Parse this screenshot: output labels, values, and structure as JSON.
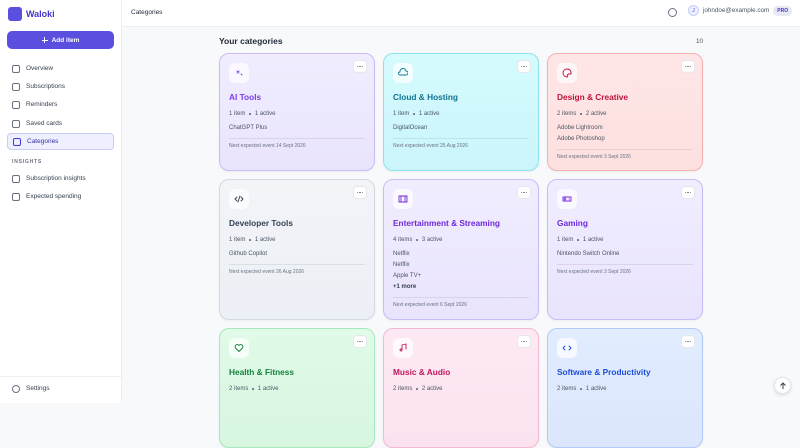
{
  "sidebar": {
    "brand": "Waloki",
    "add_button": "Add item",
    "nav": [
      "Overview",
      "Subscriptions",
      "Reminders",
      "Saved cards",
      "Categories"
    ],
    "section": "INSIGHTS",
    "insights": [
      "Subscription insights",
      "Expected spending"
    ],
    "settings": "Settings"
  },
  "topbar": {
    "title": "Categories",
    "avatar": "J",
    "email": "johndoe@example.com",
    "badge": "PRO"
  },
  "main": {
    "heading": "Your categories",
    "count": 10,
    "cards": [
      {
        "title": "AI Tools",
        "count": "1 item",
        "active": "1 active",
        "items": [
          "ChatGPT Plus"
        ],
        "next": "Next expected event 14 Sept 2026"
      },
      {
        "title": "Cloud & Hosting",
        "count": "1 item",
        "active": "1 active",
        "items": [
          "DigitalOcean"
        ],
        "next": "Next expected event 25 Aug 2026"
      },
      {
        "title": "Design & Creative",
        "count": "2 items",
        "active": "2 active",
        "items": [
          "Adobe Lightroom",
          "Adobe Photoshop"
        ],
        "next": "Next expected event 3 Sept 2026"
      },
      {
        "title": "Developer Tools",
        "count": "1 item",
        "active": "1 active",
        "items": [
          "Github Copilot"
        ],
        "next": "Next expected event 26 Aug 2026"
      },
      {
        "title": "Entertainment & Streaming",
        "count": "4 items",
        "active": "3 active",
        "items": [
          "Netflix",
          "Netflix",
          "Apple TV+"
        ],
        "more": "+1 more",
        "next": "Next expected event 6 Sept 2026"
      },
      {
        "title": "Gaming",
        "count": "1 item",
        "active": "1 active",
        "items": [
          "Nintendo Switch Online"
        ],
        "next": "Next expected event 3 Sept 2026"
      },
      {
        "title": "Health & Fitness",
        "count": "2 items",
        "active": "1 active"
      },
      {
        "title": "Music & Audio",
        "count": "2 items",
        "active": "2 active"
      },
      {
        "title": "Software & Productivity",
        "count": "2 items",
        "active": "1 active"
      }
    ]
  }
}
